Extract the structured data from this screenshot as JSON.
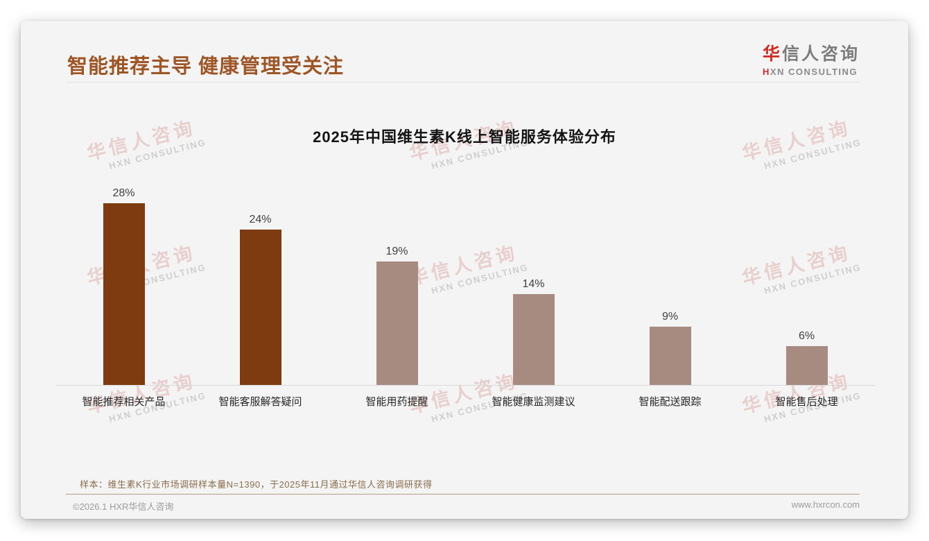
{
  "page": {
    "slide_title": "智能推荐主导 健康管理受关注",
    "logo": {
      "zh_first": "华",
      "zh_rest": "信人咨询",
      "en_first": "H",
      "en_rest": "XN CONSULTING"
    },
    "watermark": {
      "zh": "华信人咨询",
      "en": "HXN CONSULTING"
    },
    "note": "样本：维生素K行业市场调研样本量N=1390，于2025年11月通过华信人咨询调研获得",
    "footer_left": "©2026.1 HXR华信人咨询",
    "footer_right": "www.hxrcon.com"
  },
  "colors": {
    "title_accent": "#9E5627",
    "bar_dark": "#7E3B0F",
    "bar_light": "#A88B80",
    "logo_red": "#cf2b25"
  },
  "chart_data": {
    "type": "bar",
    "title": "2025年中国维生素K线上智能服务体验分布",
    "categories": [
      "智能推荐相关产品",
      "智能客服解答疑问",
      "智能用药提醒",
      "智能健康监测建议",
      "智能配送跟踪",
      "智能售后处理"
    ],
    "values": [
      28,
      24,
      19,
      14,
      9,
      6
    ],
    "value_labels": [
      "28%",
      "24%",
      "19%",
      "14%",
      "9%",
      "6%"
    ],
    "bar_colors": [
      "#7E3B0F",
      "#7E3B0F",
      "#A88B80",
      "#A88B80",
      "#A88B80",
      "#A88B80"
    ],
    "xlabel": "",
    "ylabel": "",
    "ylim": [
      0,
      30
    ],
    "grid": false,
    "legend": "none",
    "data_labels": "above-bars"
  }
}
